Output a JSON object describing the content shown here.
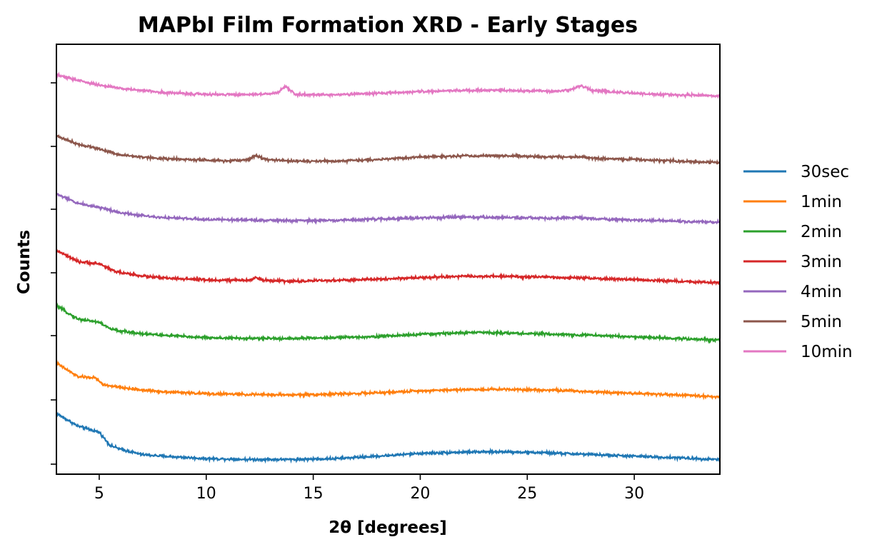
{
  "chart_data": {
    "type": "line",
    "title": "MAPbI Film Formation XRD - Early Stages",
    "xlabel": "2θ [degrees]",
    "ylabel": "Counts",
    "xlim": [
      3,
      34
    ],
    "xticks": [
      5,
      10,
      15,
      20,
      25,
      30
    ],
    "yticks_labeled": false,
    "grid": false,
    "legend_position": "right, outside plot",
    "note": "Each series is shown vertically offset (stacked); y values are relative counts including offset.",
    "series": [
      {
        "name": "30sec",
        "color": "#1f77b4",
        "points": [
          [
            3,
            0.93
          ],
          [
            4,
            0.62
          ],
          [
            5,
            0.47
          ],
          [
            5.5,
            0.15
          ],
          [
            6,
            0.05
          ],
          [
            7,
            -0.08
          ],
          [
            8,
            -0.12
          ],
          [
            10,
            -0.18
          ],
          [
            12,
            -0.2
          ],
          [
            14,
            -0.2
          ],
          [
            16,
            -0.18
          ],
          [
            18,
            -0.12
          ],
          [
            20,
            -0.05
          ],
          [
            22,
            -0.02
          ],
          [
            24,
            -0.01
          ],
          [
            26,
            -0.04
          ],
          [
            28,
            -0.08
          ],
          [
            30,
            -0.12
          ],
          [
            32,
            -0.16
          ],
          [
            34,
            -0.2
          ]
        ]
      },
      {
        "name": "1min",
        "color": "#ff7f0e",
        "points": [
          [
            3,
            0.78
          ],
          [
            4,
            0.45
          ],
          [
            4.8,
            0.42
          ],
          [
            5.2,
            0.25
          ],
          [
            6,
            0.18
          ],
          [
            7,
            0.12
          ],
          [
            8,
            0.08
          ],
          [
            10,
            0.03
          ],
          [
            12,
            0.01
          ],
          [
            14,
            0.0
          ],
          [
            16,
            0.02
          ],
          [
            18,
            0.05
          ],
          [
            20,
            0.1
          ],
          [
            22,
            0.13
          ],
          [
            24,
            0.14
          ],
          [
            26,
            0.12
          ],
          [
            28,
            0.08
          ],
          [
            30,
            0.04
          ],
          [
            32,
            0.0
          ],
          [
            34,
            -0.05
          ]
        ]
      },
      {
        "name": "2min",
        "color": "#2ca02c",
        "points": [
          [
            3,
            0.8
          ],
          [
            4,
            0.48
          ],
          [
            5,
            0.4
          ],
          [
            5.5,
            0.24
          ],
          [
            6,
            0.18
          ],
          [
            7,
            0.12
          ],
          [
            8,
            0.08
          ],
          [
            10,
            0.02
          ],
          [
            12,
            0.0
          ],
          [
            14,
            0.0
          ],
          [
            16,
            0.02
          ],
          [
            18,
            0.05
          ],
          [
            20,
            0.1
          ],
          [
            22,
            0.14
          ],
          [
            23,
            0.15
          ],
          [
            25,
            0.12
          ],
          [
            28,
            0.08
          ],
          [
            30,
            0.04
          ],
          [
            32,
            0.0
          ],
          [
            34,
            -0.04
          ]
        ]
      },
      {
        "name": "3min",
        "color": "#d62728",
        "points": [
          [
            3,
            0.78
          ],
          [
            4,
            0.5
          ],
          [
            5,
            0.45
          ],
          [
            5.8,
            0.25
          ],
          [
            7,
            0.15
          ],
          [
            8,
            0.1
          ],
          [
            10,
            0.05
          ],
          [
            12,
            0.04
          ],
          [
            12.3,
            0.12
          ],
          [
            12.7,
            0.04
          ],
          [
            14,
            0.02
          ],
          [
            16,
            0.04
          ],
          [
            18,
            0.07
          ],
          [
            20,
            0.11
          ],
          [
            22,
            0.14
          ],
          [
            24,
            0.14
          ],
          [
            26,
            0.12
          ],
          [
            28,
            0.09
          ],
          [
            30,
            0.06
          ],
          [
            32,
            0.02
          ],
          [
            34,
            -0.02
          ]
        ]
      },
      {
        "name": "4min",
        "color": "#9467bd",
        "points": [
          [
            3,
            0.78
          ],
          [
            4,
            0.55
          ],
          [
            5,
            0.45
          ],
          [
            6,
            0.32
          ],
          [
            7,
            0.25
          ],
          [
            8,
            0.2
          ],
          [
            10,
            0.15
          ],
          [
            12,
            0.14
          ],
          [
            14,
            0.12
          ],
          [
            16,
            0.13
          ],
          [
            18,
            0.16
          ],
          [
            20,
            0.19
          ],
          [
            22,
            0.21
          ],
          [
            24,
            0.2
          ],
          [
            26,
            0.18
          ],
          [
            27.5,
            0.2
          ],
          [
            28,
            0.17
          ],
          [
            30,
            0.14
          ],
          [
            32,
            0.11
          ],
          [
            34,
            0.08
          ]
        ]
      },
      {
        "name": "5min",
        "color": "#8c564b",
        "points": [
          [
            3,
            0.82
          ],
          [
            4,
            0.62
          ],
          [
            5,
            0.5
          ],
          [
            6,
            0.35
          ],
          [
            7,
            0.3
          ],
          [
            8,
            0.26
          ],
          [
            10,
            0.22
          ],
          [
            11,
            0.2
          ],
          [
            12,
            0.24
          ],
          [
            12.3,
            0.34
          ],
          [
            12.8,
            0.24
          ],
          [
            14,
            0.2
          ],
          [
            16,
            0.2
          ],
          [
            18,
            0.24
          ],
          [
            20,
            0.3
          ],
          [
            22,
            0.33
          ],
          [
            24,
            0.33
          ],
          [
            26,
            0.3
          ],
          [
            27.5,
            0.3
          ],
          [
            28,
            0.27
          ],
          [
            30,
            0.24
          ],
          [
            32,
            0.2
          ],
          [
            34,
            0.16
          ]
        ]
      },
      {
        "name": "10min",
        "color": "#e377c2",
        "points": [
          [
            3,
            0.93
          ],
          [
            4,
            0.8
          ],
          [
            5,
            0.68
          ],
          [
            6,
            0.6
          ],
          [
            7,
            0.55
          ],
          [
            8,
            0.5
          ],
          [
            10,
            0.45
          ],
          [
            12,
            0.45
          ],
          [
            13.3,
            0.48
          ],
          [
            13.7,
            0.65
          ],
          [
            14.2,
            0.45
          ],
          [
            16,
            0.44
          ],
          [
            18,
            0.48
          ],
          [
            20,
            0.52
          ],
          [
            22,
            0.55
          ],
          [
            24,
            0.55
          ],
          [
            26,
            0.53
          ],
          [
            27,
            0.55
          ],
          [
            27.5,
            0.68
          ],
          [
            28,
            0.55
          ],
          [
            30,
            0.48
          ],
          [
            32,
            0.44
          ],
          [
            34,
            0.42
          ]
        ]
      }
    ]
  }
}
